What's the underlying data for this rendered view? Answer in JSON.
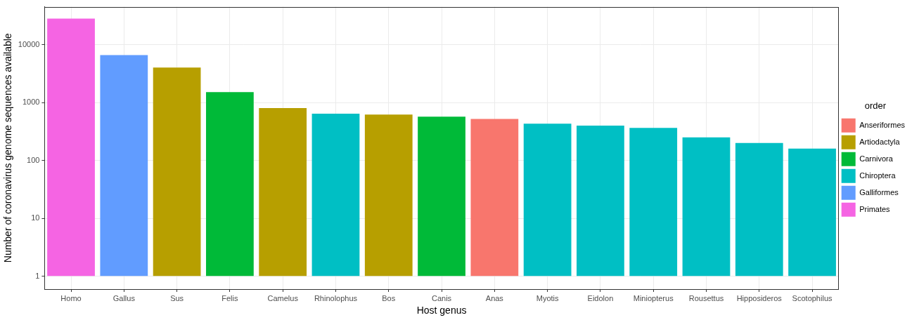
{
  "chart_data": {
    "type": "bar",
    "x_label": "Host genus",
    "y_label": "Number of coronavirus genome sequences available",
    "categories": [
      "Homo",
      "Gallus",
      "Sus",
      "Felis",
      "Camelus",
      "Rhinolophus",
      "Bos",
      "Canis",
      "Anas",
      "Myotis",
      "Eidolon",
      "Miniopterus",
      "Rousettus",
      "Hipposideros",
      "Scotophilus"
    ],
    "series": [
      {
        "name": "Anseriformes",
        "color": "#F8766D",
        "values": [
          null,
          null,
          null,
          null,
          null,
          null,
          null,
          null,
          520,
          null,
          null,
          null,
          null,
          null,
          null
        ]
      },
      {
        "name": "Artiodactyla",
        "color": "#B79F00",
        "values": [
          null,
          null,
          4000,
          null,
          800,
          null,
          620,
          null,
          null,
          null,
          null,
          null,
          null,
          null,
          null
        ]
      },
      {
        "name": "Carnivora",
        "color": "#00BA38",
        "values": [
          null,
          null,
          null,
          1510,
          null,
          null,
          null,
          570,
          null,
          null,
          null,
          null,
          null,
          null,
          null
        ]
      },
      {
        "name": "Chiroptera",
        "color": "#00BFC4",
        "values": [
          null,
          null,
          null,
          null,
          null,
          640,
          null,
          null,
          null,
          430,
          400,
          365,
          250,
          200,
          160
        ]
      },
      {
        "name": "Galliformes",
        "color": "#619CFF",
        "values": [
          null,
          6600,
          null,
          null,
          null,
          null,
          null,
          null,
          null,
          null,
          null,
          null,
          null,
          null,
          null
        ]
      },
      {
        "name": "Primates",
        "color": "#F564E3",
        "values": [
          28000,
          null,
          null,
          null,
          null,
          null,
          null,
          null,
          null,
          null,
          null,
          null,
          null,
          null,
          null
        ]
      }
    ],
    "legend_title": "order",
    "legend": "right",
    "log": "y",
    "grid": true,
    "ylim": [
      0.62,
      45000
    ],
    "yticks": [
      1,
      10,
      100,
      1000,
      10000
    ]
  }
}
